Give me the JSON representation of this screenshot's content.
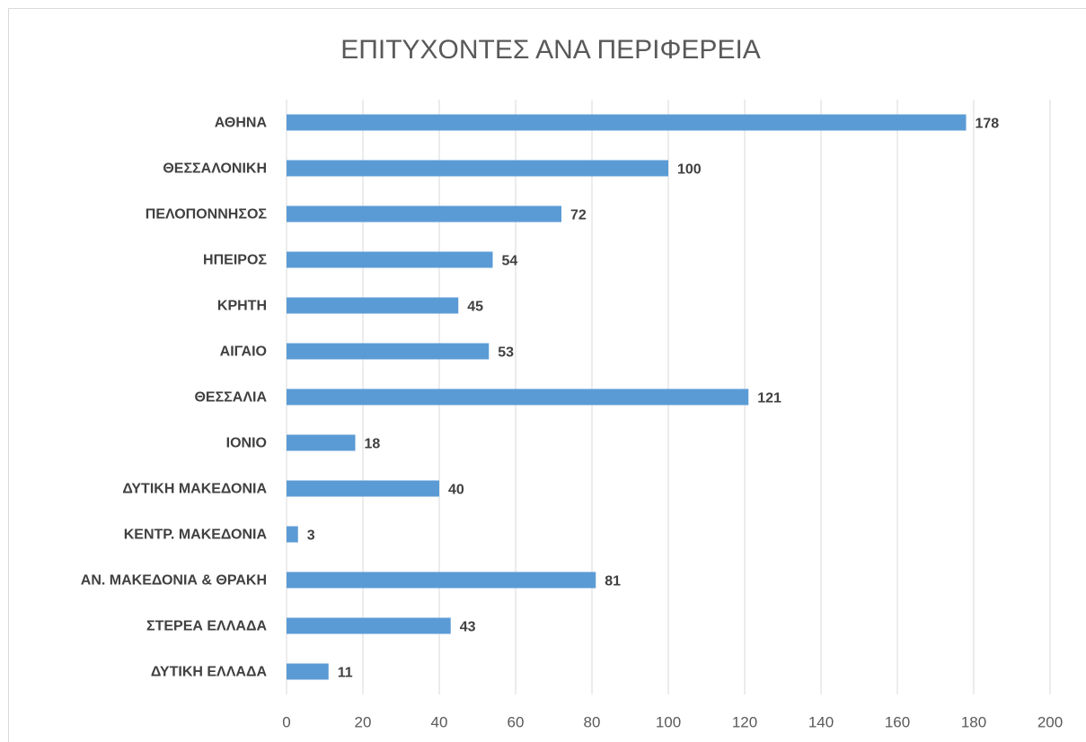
{
  "chart_data": {
    "type": "bar",
    "title": "ΕΠΙΤΥΧΟΝΤΕΣ ΑΝΑ ΠΕΡΙΦΕΡΕΙΑ",
    "categories": [
      "ΑΘΗΝΑ",
      "ΘΕΣΣΑΛΟΝΙΚΗ",
      "ΠΕΛΟΠΟΝΝΗΣΟΣ",
      "ΗΠΕΙΡΟΣ",
      "ΚΡΗΤΗ",
      "ΑΙΓΑΙΟ",
      "ΘΕΣΣΑΛΙΑ",
      "ΙΟΝΙΟ",
      "ΔΥΤΙΚΗ ΜΑΚΕΔΟΝΙΑ",
      "ΚΕΝΤΡ. ΜΑΚΕΔΟΝΙΑ",
      "ΑΝ. ΜΑΚΕΔΟΝΙΑ & ΘΡΑΚΗ",
      "ΣΤΕΡΕΑ ΕΛΛΑΔΑ",
      "ΔΥΤΙΚΗ ΕΛΛΑΔΑ"
    ],
    "values": [
      178,
      100,
      72,
      54,
      45,
      53,
      121,
      18,
      40,
      3,
      81,
      43,
      11
    ],
    "color": "#5b9bd5",
    "xlim": [
      0,
      200
    ],
    "xticks": [
      0,
      20,
      40,
      60,
      80,
      100,
      120,
      140,
      160,
      180,
      200
    ],
    "grid": true
  }
}
